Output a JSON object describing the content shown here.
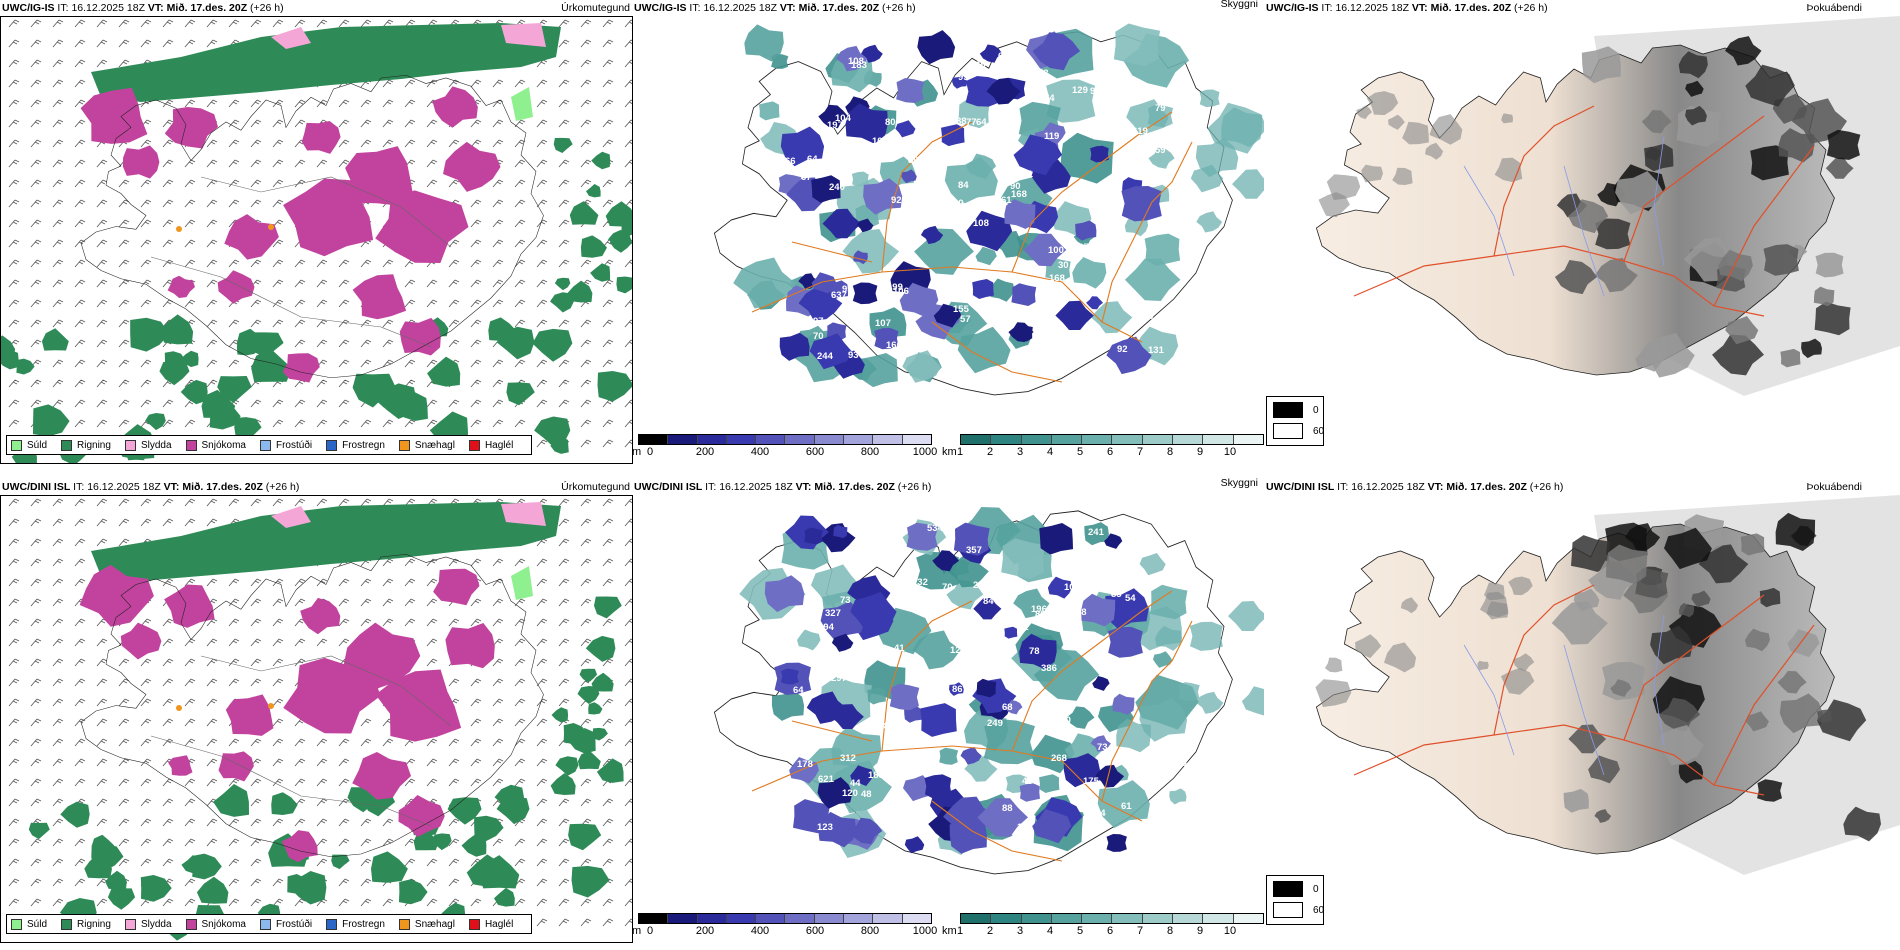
{
  "rows": [
    {
      "model": "UWC/IG-IS",
      "it_label": "IT:",
      "it_value": "16.12.2025 18Z",
      "vt_label": "VT:",
      "vt_value": "Mið. 17.des. 20Z",
      "lead": "(+26 h)",
      "ceiling_labels": [
        "108",
        "197",
        "229",
        "97",
        "79",
        "106",
        "73",
        "64",
        "74",
        "61",
        "183",
        "131",
        "240",
        "79",
        "321",
        "119",
        "93",
        "88",
        "130",
        "95",
        "61",
        "70",
        "107",
        "77",
        "171",
        "135",
        "104",
        "99",
        "67",
        "100",
        "59",
        "60",
        "155",
        "84",
        "80",
        "129",
        "199",
        "92",
        "70",
        "207",
        "64",
        "80",
        "10",
        "168",
        "166",
        "66",
        "90",
        "244",
        "57",
        "168",
        "637",
        "619",
        "875",
        "30",
        "165",
        "80",
        "108",
        "67",
        "75",
        "74",
        "65",
        "92",
        "64",
        "109",
        "94"
      ]
    },
    {
      "model": "UWC/DINI ISL",
      "it_label": "IT:",
      "it_value": "16.12.2025 18Z",
      "vt_label": "VT:",
      "vt_value": "Mið. 17.des. 20Z",
      "lead": "(+26 h)",
      "ceiling_labels": [
        "268",
        "194",
        "44",
        "108",
        "91",
        "48",
        "249",
        "170",
        "401",
        "126",
        "113",
        "88",
        "175",
        "58",
        "68",
        "54",
        "241",
        "183",
        "123",
        "64",
        "61",
        "87",
        "81",
        "85",
        "312",
        "259",
        "357",
        "386",
        "534",
        "621",
        "469",
        "44",
        "178",
        "132",
        "327",
        "196",
        "120",
        "78",
        "148",
        "70",
        "100",
        "73",
        "86",
        "80",
        "121",
        "45",
        "73",
        "41",
        "297",
        "84"
      ]
    }
  ],
  "titles": {
    "precip": "Úrkomutegund",
    "ceiling": "Skyggni",
    "fog": "Þokuábendi"
  },
  "precip_legend": [
    {
      "label": "Súld",
      "color": "#8ff08f"
    },
    {
      "label": "Rigning",
      "color": "#2e8b57"
    },
    {
      "label": "Slydda",
      "color": "#f4a6d7"
    },
    {
      "label": "Snjókoma",
      "color": "#c2439e"
    },
    {
      "label": "Frostúði",
      "color": "#8cb8f0"
    },
    {
      "label": "Frostregn",
      "color": "#2a66c8"
    },
    {
      "label": "Snæhagl",
      "color": "#f0951e"
    },
    {
      "label": "Haglél",
      "color": "#e0101a"
    }
  ],
  "ceiling_scale": {
    "unit": "m",
    "ticks": [
      "0",
      "200",
      "400",
      "600",
      "800",
      "1000"
    ],
    "colors": [
      "#000000",
      "#1a1a7a",
      "#2a2a9a",
      "#3a3ab0",
      "#5252b8",
      "#6e6ec4",
      "#8a8ad0",
      "#a4a4dc",
      "#c0c0e6",
      "#dcdcf2"
    ]
  },
  "visibility_scale": {
    "unit": "km",
    "ticks": [
      "1",
      "2",
      "3",
      "4",
      "5",
      "6",
      "7",
      "8",
      "9",
      "10"
    ],
    "colors": [
      "#1f6f6a",
      "#2e8480",
      "#3f928e",
      "#55a29e",
      "#6cb0ad",
      "#84bebb",
      "#9ccbc8",
      "#b6d9d7",
      "#d0e7e5",
      "#eaf4f3"
    ]
  },
  "fog_legend": [
    {
      "label": "0",
      "color": "#000000"
    },
    {
      "label": "60",
      "color": "#ffffff"
    }
  ]
}
